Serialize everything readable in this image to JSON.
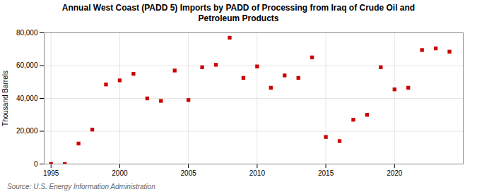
{
  "chart_data": {
    "type": "scatter",
    "title": "Annual West Coast (PADD 5) Imports by PADD of Processing from Iraq of Crude Oil and\nPetroleum Products",
    "ylabel": "Thousand Barrels",
    "annotations": [
      "Source: U.S. Energy Information Administration"
    ],
    "x": [
      1995,
      1996,
      1997,
      1998,
      1999,
      2000,
      2001,
      2002,
      2003,
      2004,
      2005,
      2006,
      2007,
      2008,
      2009,
      2010,
      2011,
      2012,
      2013,
      2014,
      2015,
      2016,
      2017,
      2018,
      2019,
      2020,
      2021,
      2022,
      2023,
      2024
    ],
    "values": [
      0,
      0,
      12500,
      21000,
      48500,
      51000,
      55000,
      40000,
      38500,
      57000,
      39000,
      59000,
      60500,
      77000,
      52500,
      59500,
      46500,
      54000,
      52500,
      65000,
      16500,
      14000,
      27000,
      30000,
      59000,
      45500,
      46500,
      69500,
      70500,
      68500
    ],
    "color": "#cc0000",
    "marker": "square",
    "grid": true,
    "xlim": [
      1994.5,
      2025
    ],
    "xticks": [
      1995,
      2000,
      2005,
      2010,
      2015,
      2020
    ],
    "ylim": [
      0,
      80000
    ],
    "yticks": [
      0,
      {
        "value": 20000,
        "label": "20,000"
      },
      {
        "value": 40000,
        "label": "40,000"
      },
      {
        "value": 60000,
        "label": "60,000"
      },
      {
        "value": 80000,
        "label": "80,000"
      }
    ]
  }
}
